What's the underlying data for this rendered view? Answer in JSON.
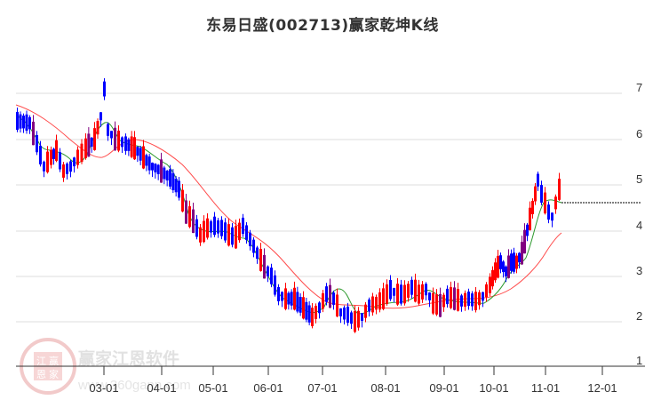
{
  "title": "东易日盛(002713)赢家乾坤K线",
  "watermark": {
    "text": "赢家江恩软件",
    "url": "www.360gann.com",
    "seal_chars": [
      "江",
      "赢",
      "恩",
      "家"
    ]
  },
  "colors": {
    "up": "#ff0000",
    "down": "#0000ff",
    "neutral": "#800080",
    "ma_short": "#2e9a2e",
    "ma_long": "#ff4d4d",
    "grid": "#dddddd",
    "axis": "#333333"
  },
  "chart_data": {
    "type": "candlestick",
    "title": "东易日盛(002713)赢家乾坤K线",
    "xlabel": "",
    "ylabel": "",
    "ylim": [
      1,
      7.6
    ],
    "y_ticks": [
      1,
      2,
      3,
      4,
      5,
      6,
      7
    ],
    "x_ticks": [
      "03-01",
      "04-01",
      "05-01",
      "06-01",
      "07-01",
      "08-01",
      "09-01",
      "10-01",
      "11-01",
      "12-01"
    ],
    "grid": true,
    "legend": null,
    "last_price_reference": 4.6,
    "series": [
      {
        "name": "close_approx",
        "points": [
          [
            "02-01",
            6.4
          ],
          [
            "02-10",
            5.6
          ],
          [
            "02-18",
            5.4
          ],
          [
            "02-25",
            5.7
          ],
          [
            "03-01",
            6.3
          ],
          [
            "03-03",
            7.1
          ],
          [
            "03-08",
            6.1
          ],
          [
            "03-15",
            5.9
          ],
          [
            "03-25",
            5.7
          ],
          [
            "04-01",
            5.4
          ],
          [
            "04-10",
            5.2
          ],
          [
            "04-20",
            4.3
          ],
          [
            "04-28",
            4.0
          ],
          [
            "05-08",
            4.1
          ],
          [
            "05-20",
            3.8
          ],
          [
            "06-01",
            3.5
          ],
          [
            "06-10",
            2.9
          ],
          [
            "06-20",
            2.5
          ],
          [
            "07-01",
            2.4
          ],
          [
            "07-10",
            2.1
          ],
          [
            "07-20",
            2.0
          ],
          [
            "08-01",
            2.4
          ],
          [
            "08-10",
            2.7
          ],
          [
            "08-20",
            2.5
          ],
          [
            "09-01",
            2.5
          ],
          [
            "09-10",
            2.6
          ],
          [
            "09-20",
            2.4
          ],
          [
            "10-01",
            2.7
          ],
          [
            "10-10",
            3.3
          ],
          [
            "10-20",
            3.9
          ],
          [
            "10-28",
            5.0
          ],
          [
            "11-05",
            4.3
          ],
          [
            "11-10",
            4.8
          ]
        ]
      },
      {
        "name": "ma_short",
        "color": "#2e9a2e"
      },
      {
        "name": "ma_long",
        "color": "#ff4d4d"
      }
    ]
  }
}
